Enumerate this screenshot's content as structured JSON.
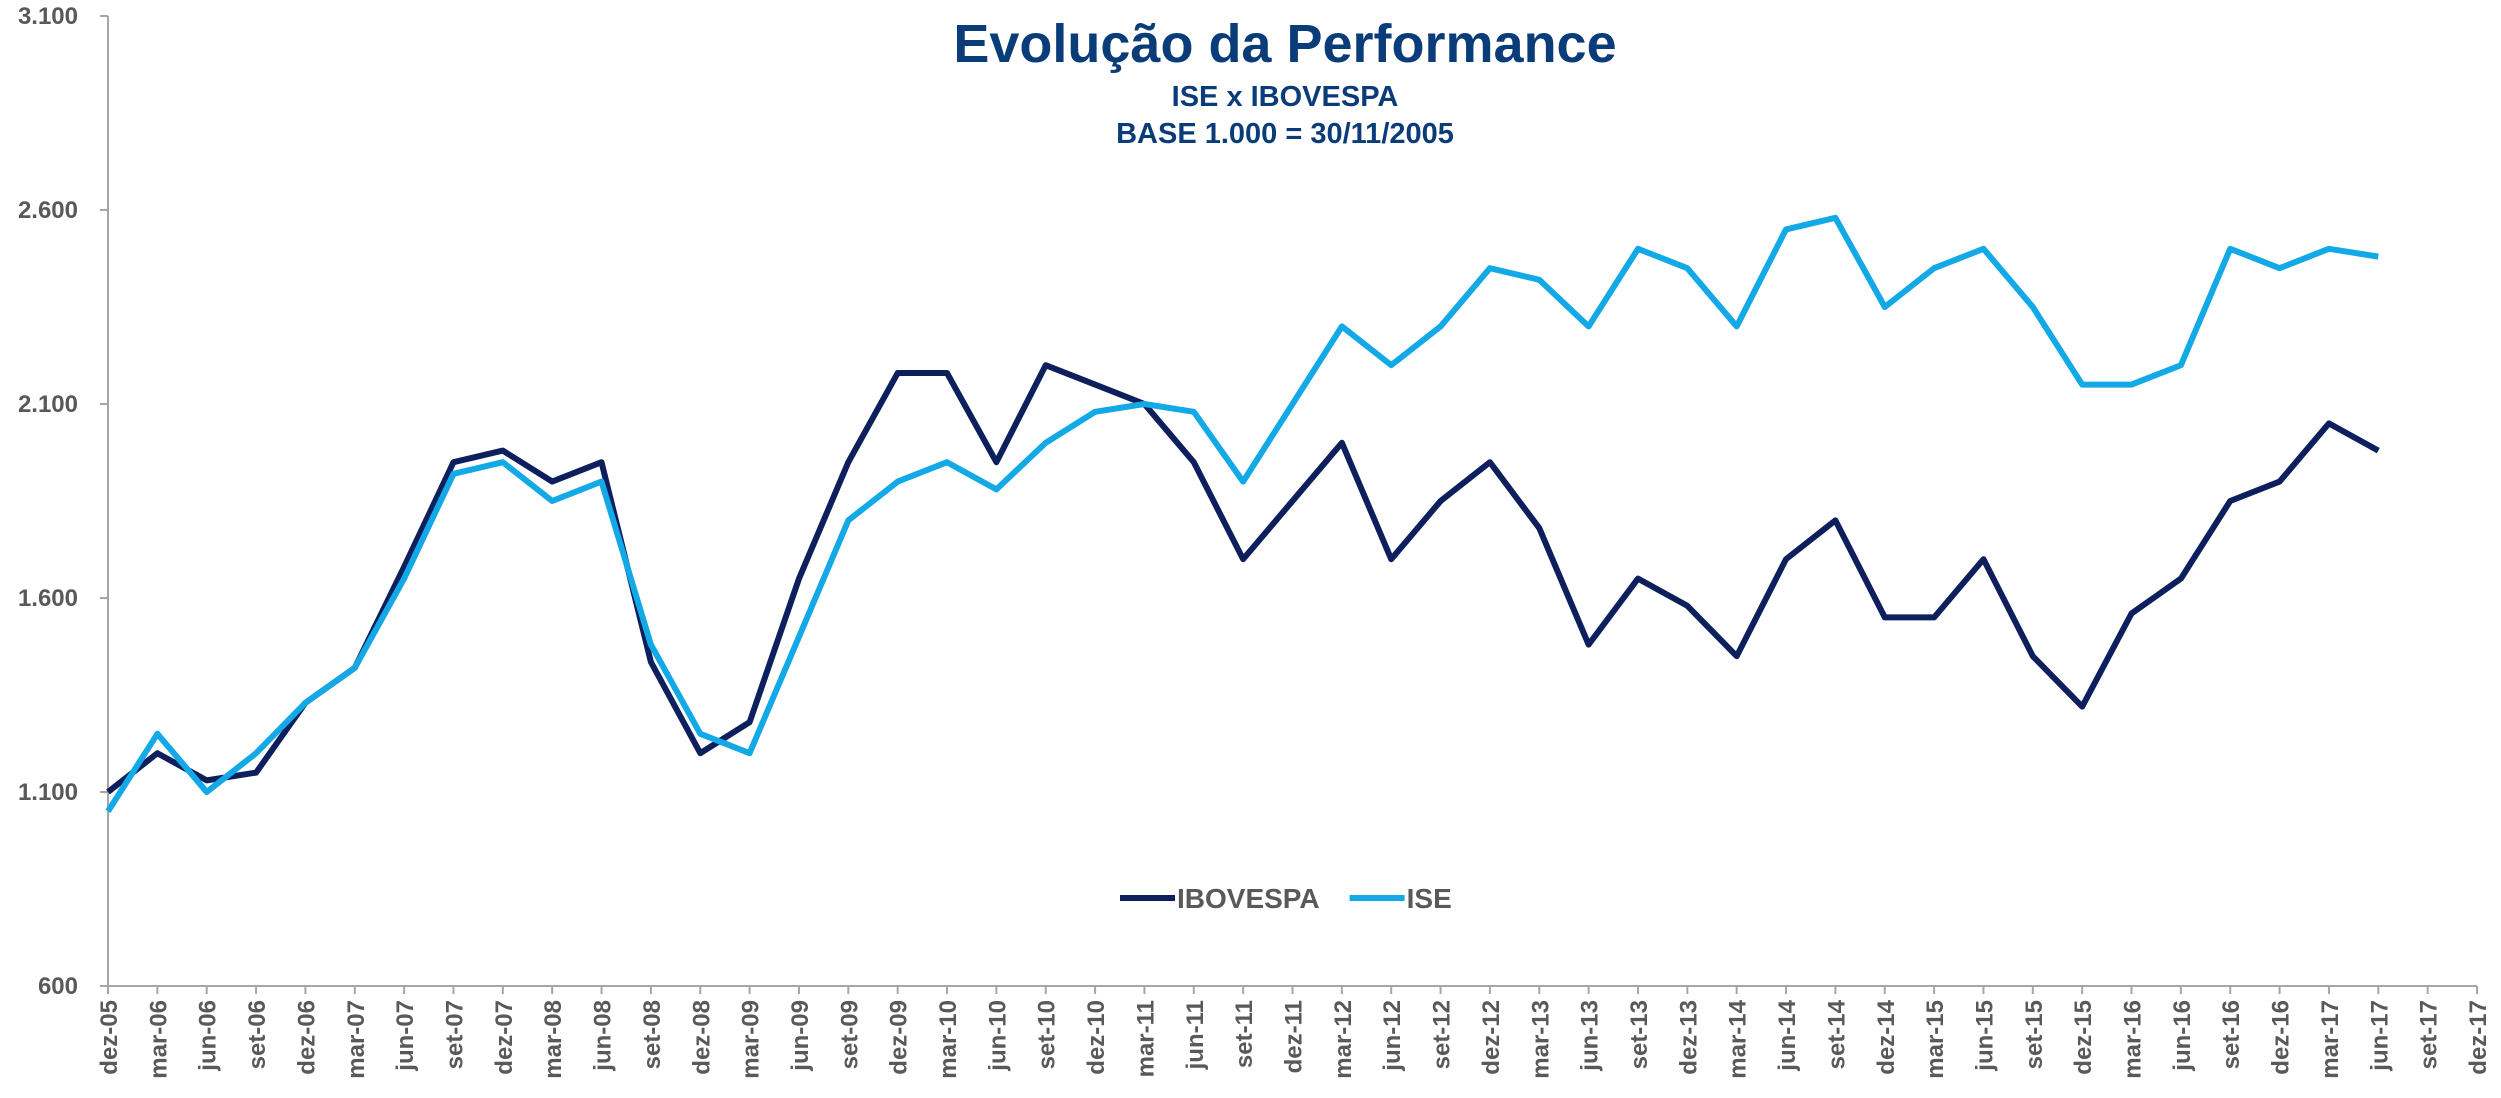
{
  "chart_data": {
    "type": "line",
    "title": "Evolução da Performance",
    "subtitle": [
      "ISE x IBOVESPA",
      "BASE 1.000 = 30/11/2005"
    ],
    "categories": [
      "dez-05",
      "mar-06",
      "jun-06",
      "set-06",
      "dez-06",
      "mar-07",
      "jun-07",
      "set-07",
      "dez-07",
      "mar-08",
      "jun-08",
      "set-08",
      "dez-08",
      "mar-09",
      "jun-09",
      "set-09",
      "dez-09",
      "mar-10",
      "jun-10",
      "set-10",
      "dez-10",
      "mar-11",
      "jun-11",
      "set-11",
      "dez-11",
      "mar-12",
      "jun-12",
      "set-12",
      "dez-12",
      "mar-13",
      "jun-13",
      "set-13",
      "dez-13",
      "mar-14",
      "jun-14",
      "set-14",
      "dez-14",
      "mar-15",
      "jun-15",
      "set-15",
      "dez-15",
      "mar-16",
      "jun-16",
      "set-16",
      "dez-16",
      "mar-17",
      "jun-17",
      "set-17",
      "dez-17"
    ],
    "series": [
      {
        "name": "IBOVESPA",
        "color": "#0d1f5c",
        "values": [
          1100,
          1200,
          1130,
          1150,
          1330,
          1420,
          1680,
          1950,
          1980,
          1900,
          1950,
          1435,
          1200,
          1280,
          1650,
          1950,
          2180,
          2180,
          1950,
          2200,
          2150,
          2100,
          1950,
          1700,
          1850,
          2000,
          1700,
          1850,
          1950,
          1780,
          1480,
          1650,
          1580,
          1450,
          1700,
          1800,
          1550,
          1550,
          1700,
          1450,
          1320,
          1560,
          1650,
          1850,
          1900,
          2050,
          1980,
          null,
          null
        ]
      },
      {
        "name": "ISE",
        "color": "#12a9e6",
        "values": [
          1050,
          1250,
          1100,
          1200,
          1330,
          1420,
          1650,
          1920,
          1950,
          1850,
          1900,
          1480,
          1250,
          1200,
          1500,
          1800,
          1900,
          1950,
          1880,
          2000,
          2080,
          2100,
          2080,
          1900,
          2100,
          2300,
          2200,
          2300,
          2450,
          2420,
          2300,
          2500,
          2450,
          2300,
          2550,
          2580,
          2350,
          2450,
          2500,
          2350,
          2150,
          2150,
          2200,
          2500,
          2450,
          2500,
          2480,
          null,
          null
        ]
      }
    ],
    "ylim": [
      600,
      3100
    ],
    "yticks": [
      {
        "value": 600,
        "label": "600"
      },
      {
        "value": 1100,
        "label": "1.100"
      },
      {
        "value": 1600,
        "label": "1.600"
      },
      {
        "value": 2100,
        "label": "2.100"
      },
      {
        "value": 2600,
        "label": "2.600"
      },
      {
        "value": 3100,
        "label": "3.100"
      }
    ],
    "grid": false,
    "legend": "bottom"
  }
}
